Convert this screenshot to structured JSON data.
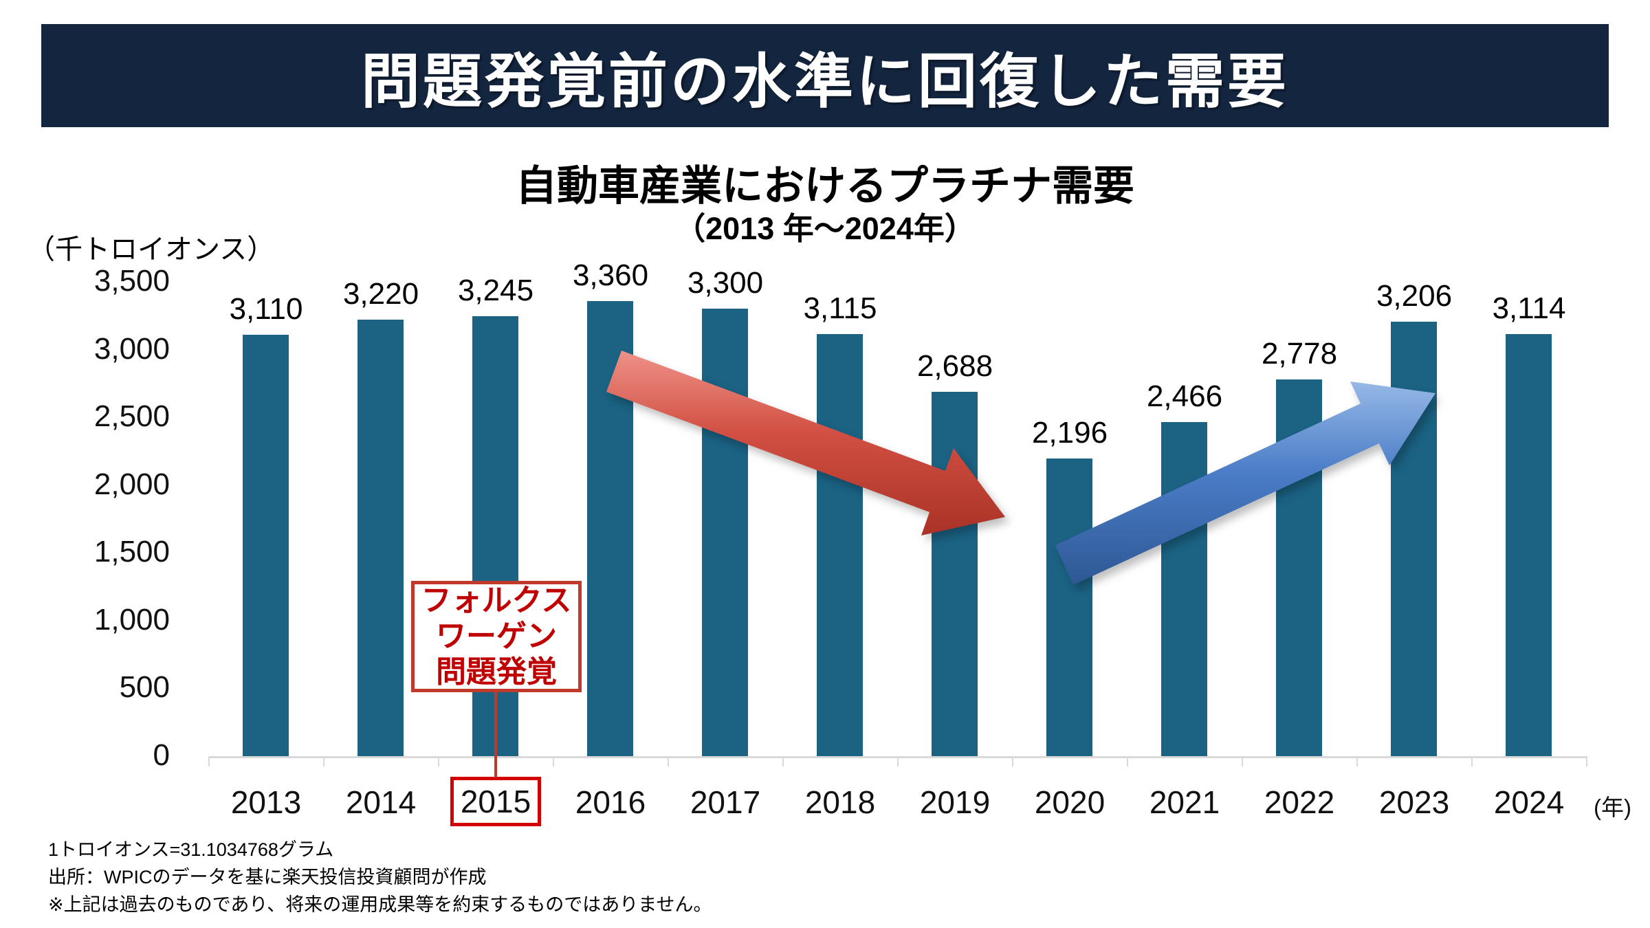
{
  "header": {
    "title": "問題発覚前の水準に回復した需要",
    "bg_color": "#13253F",
    "text_color": "#FFFFFF"
  },
  "chart_title": "自動車産業におけるプラチナ需要",
  "chart_subtitle": "（2013 年〜2024年）",
  "unit_label": "（千トロイオンス）",
  "axis_suffix": "(年)",
  "chart_data": {
    "type": "bar",
    "title": "自動車産業におけるプラチナ需要（2013 年〜2024年）",
    "xlabel": "年",
    "ylabel": "千トロイオンス",
    "categories": [
      "2013",
      "2014",
      "2015",
      "2016",
      "2017",
      "2018",
      "2019",
      "2020",
      "2021",
      "2022",
      "2023",
      "2024"
    ],
    "values": [
      3110,
      3220,
      3245,
      3360,
      3300,
      3115,
      2688,
      2196,
      2466,
      2778,
      3206,
      3114
    ],
    "value_labels": [
      "3,110",
      "3,220",
      "3,245",
      "3,360",
      "3,300",
      "3,115",
      "2,688",
      "2,196",
      "2,466",
      "2,778",
      "3,206",
      "3,114"
    ],
    "yticks": [
      3500,
      3000,
      2500,
      2000,
      1500,
      1000,
      500,
      0
    ],
    "ytick_labels": [
      "3,500",
      "3,000",
      "2,500",
      "2,000",
      "1,500",
      "1,000",
      "500",
      "0"
    ],
    "ylim": [
      0,
      3500
    ],
    "bar_color": "#1B6283",
    "axis_color": "#D9D9D9",
    "grid": false,
    "legend": false
  },
  "annotations": {
    "vw_callout": {
      "lines": [
        "フォルクス",
        "ワーゲン",
        "問題発覚"
      ],
      "text_color": "#C00000",
      "border_color": "#C0392B",
      "target_year": "2015",
      "year_box_border_color": "#D40000"
    },
    "decline_arrow": {
      "label": "decline-trend-arrow",
      "from_year": "2016",
      "to_year": "2019",
      "color_light": "#EE9188",
      "color_mid": "#D14F42",
      "color_dark": "#A93226"
    },
    "recovery_arrow": {
      "label": "recovery-trend-arrow",
      "from_year": "2020",
      "to_year": "2023",
      "color_light": "#96B8E6",
      "color_mid": "#4A7CC7",
      "color_dark": "#2E5894"
    }
  },
  "footnotes": [
    "1トロイオンス=31.1034768グラム",
    "出所：WPICのデータを基に楽天投信投資顧問が作成",
    "※上記は過去のものであり、将来の運用成果等を約束するものではありません。"
  ]
}
